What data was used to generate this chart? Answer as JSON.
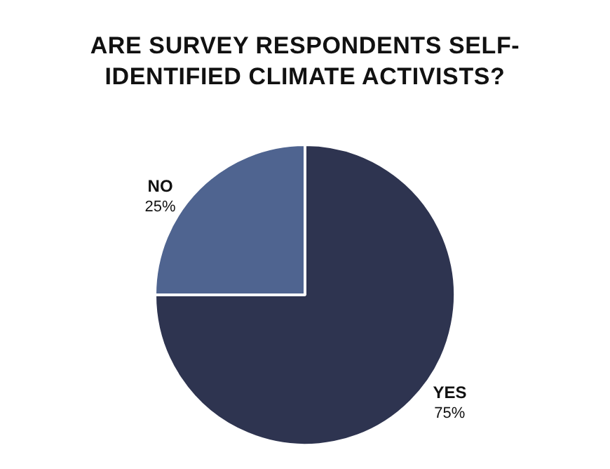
{
  "chart_data": {
    "type": "pie",
    "title": "ARE SURVEY RESPONDENTS SELF-IDENTIFIED CLIMATE ACTIVISTS?",
    "categories": [
      "YES",
      "NO"
    ],
    "values": [
      75,
      25
    ],
    "value_labels": [
      "75%",
      "25%"
    ],
    "colors": [
      "#2e3450",
      "#4f6490"
    ],
    "legend": false
  }
}
